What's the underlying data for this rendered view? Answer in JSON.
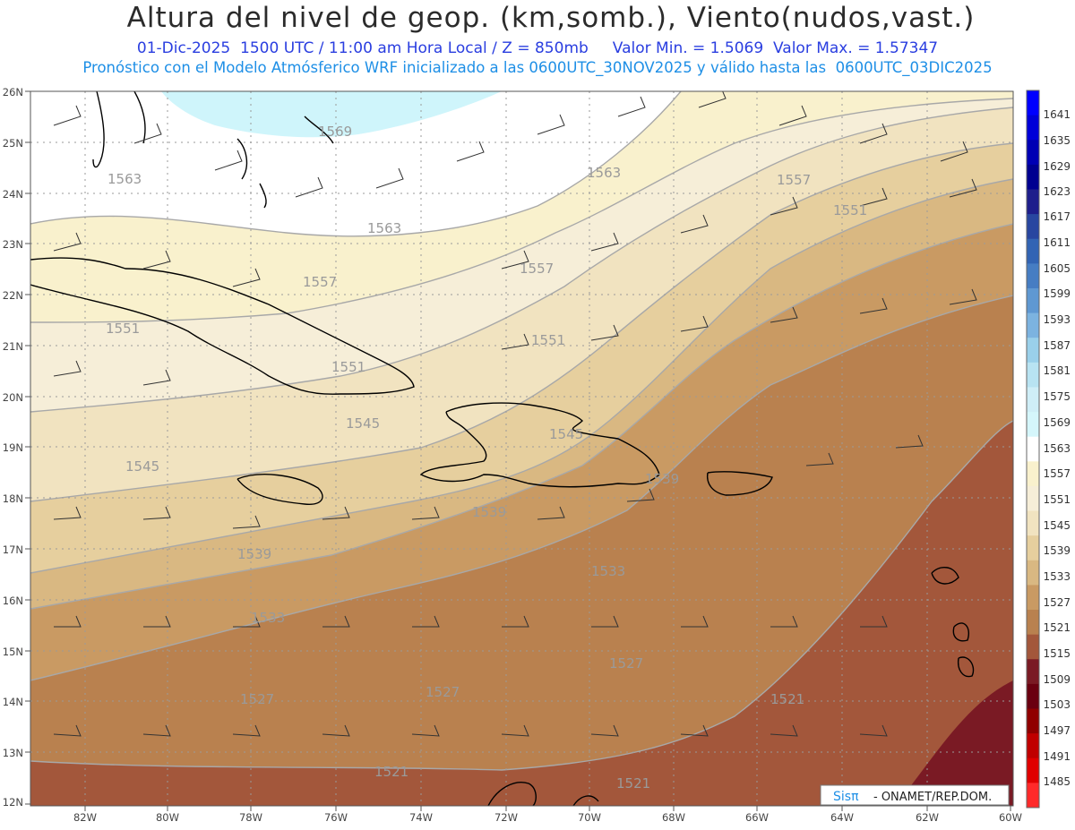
{
  "header": {
    "title": "Altura del nivel de geop. (km,somb.), Viento(nudos,vast.)",
    "subtitle": "01-Dic-2025  1500 UTC / 11:00 am Hora Local / Z = 850mb     Valor Min. = 1.5069  Valor Max. = 1.57347",
    "subtitle2": "Pronóstico con el Modelo Atmósferico WRF inicializado a las 0600UTC_30NOV2025 y válido hasta las  0600UTC_03DIC2025"
  },
  "axes": {
    "lat_labels": [
      "26N",
      "25N",
      "24N",
      "23N",
      "22N",
      "21N",
      "20N",
      "19N",
      "18N",
      "17N",
      "16N",
      "15N",
      "14N",
      "13N",
      "12N"
    ],
    "lon_labels": [
      "82W",
      "80W",
      "78W",
      "76W",
      "74W",
      "72W",
      "70W",
      "68W",
      "66W",
      "64W",
      "62W",
      "60W"
    ]
  },
  "colorbar": {
    "labels": [
      "1641",
      "1635",
      "1629",
      "1623",
      "1617",
      "1611",
      "1605",
      "1599",
      "1593",
      "1587",
      "1581",
      "1575",
      "1569",
      "1563",
      "1557",
      "1551",
      "1545",
      "1539",
      "1533",
      "1527",
      "1521",
      "1515",
      "1509",
      "1503",
      "1497",
      "1491",
      "1485"
    ],
    "colors": [
      "#0000ff",
      "#0000d8",
      "#0000b4",
      "#000090",
      "#1e1e8c",
      "#2846a0",
      "#3264b4",
      "#467dc3",
      "#5f98d2",
      "#7cb3e0",
      "#9ad0ea",
      "#b8e3f2",
      "#cfeef7",
      "#d5f6fb",
      "#ffffff",
      "#f9f1cd",
      "#f6eed8",
      "#f1e3c0",
      "#e6cf9e",
      "#d9b882",
      "#c99a63",
      "#b9814f",
      "#a3573b",
      "#7a1a24",
      "#6a0010",
      "#900000",
      "#c00000",
      "#e00000",
      "#ff2a2a"
    ]
  },
  "contour_labels": [
    {
      "text": "1569"
    },
    {
      "text": "1563"
    },
    {
      "text": "1563"
    },
    {
      "text": "1563"
    },
    {
      "text": "1557"
    },
    {
      "text": "1557"
    },
    {
      "text": "1557"
    },
    {
      "text": "1551"
    },
    {
      "text": "1551"
    },
    {
      "text": "1551"
    },
    {
      "text": "1551"
    },
    {
      "text": "1545"
    },
    {
      "text": "1545"
    },
    {
      "text": "1545"
    },
    {
      "text": "1539"
    },
    {
      "text": "1539"
    },
    {
      "text": "1539"
    },
    {
      "text": "1533"
    },
    {
      "text": "1533"
    },
    {
      "text": "1527"
    },
    {
      "text": "1527"
    },
    {
      "text": "1527"
    },
    {
      "text": "1521"
    },
    {
      "text": "1521"
    },
    {
      "text": "1521"
    }
  ],
  "footer": {
    "logo": "Sisπ",
    "credit": "- ONAMET/REP.DOM."
  }
}
